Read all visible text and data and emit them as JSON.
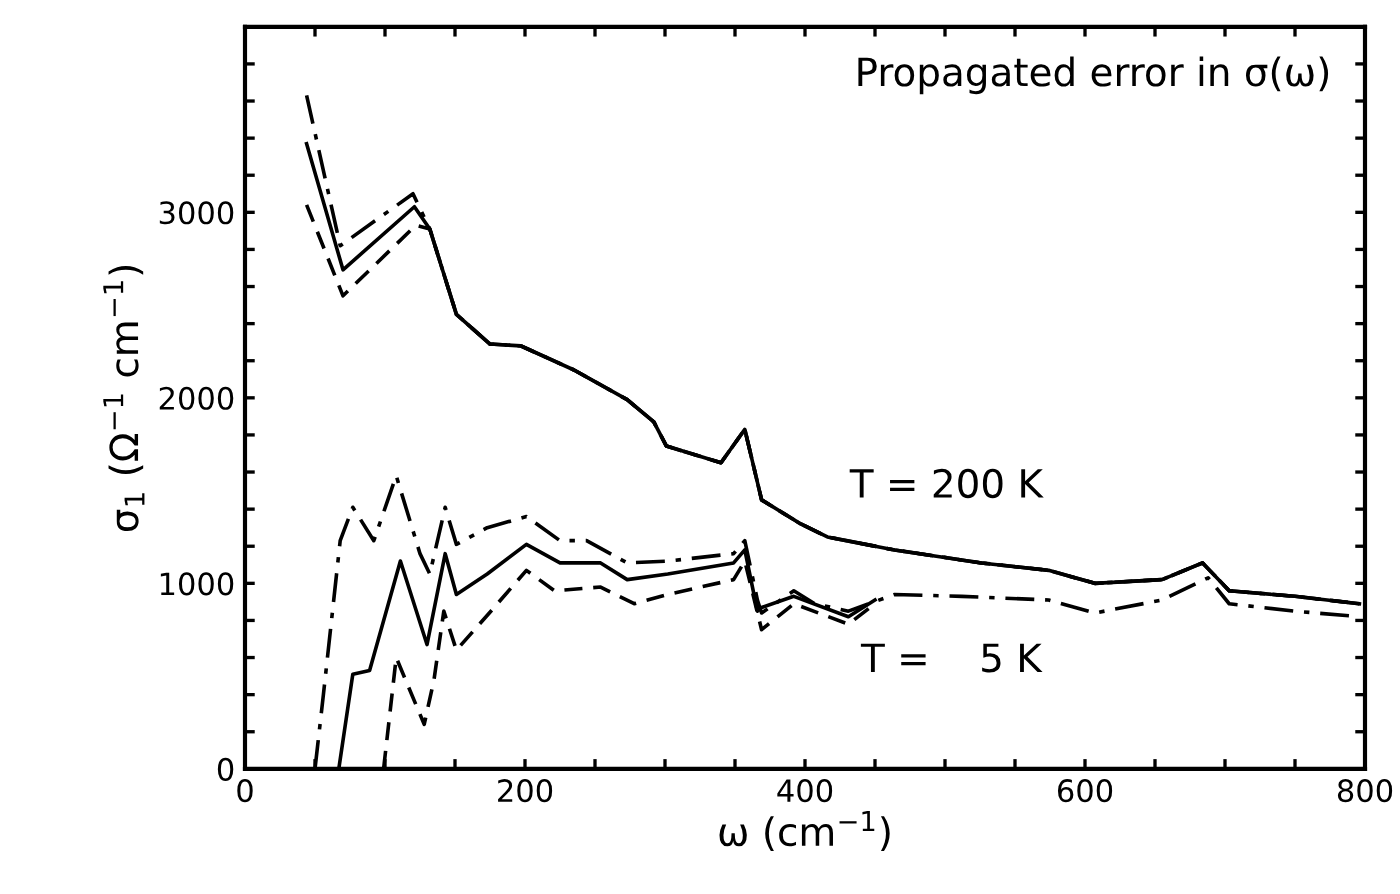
{
  "chart_data": {
    "type": "line",
    "xlabel": "ω (cm$^{−1}$)",
    "ylabel": "σ$_{1}$ (Ω$^{−1}$ cm$^{−1}$)",
    "annotations": [
      "Propagated error in σ(ω)",
      "T = 200 K",
      "T =    5 K"
    ],
    "xlim": [
      0,
      800
    ],
    "ylim": [
      0,
      4000
    ],
    "xticks": [
      0,
      {
        "value": 50,
        "label": null
      },
      {
        "value": 100,
        "label": null
      },
      {
        "value": 150,
        "label": null
      },
      200,
      {
        "value": 250,
        "label": null
      },
      {
        "value": 300,
        "label": null
      },
      {
        "value": 350,
        "label": null
      },
      400,
      {
        "value": 450,
        "label": null
      },
      {
        "value": 500,
        "label": null
      },
      {
        "value": 550,
        "label": null
      },
      600,
      {
        "value": 650,
        "label": null
      },
      {
        "value": 700,
        "label": null
      },
      {
        "value": 750,
        "label": null
      },
      800
    ],
    "yticks": [
      0,
      {
        "value": 200,
        "label": null
      },
      {
        "value": 400,
        "label": null
      },
      {
        "value": 600,
        "label": null
      },
      {
        "value": 800,
        "label": null
      },
      1000,
      {
        "value": 1200,
        "label": null
      },
      {
        "value": 1400,
        "label": null
      },
      {
        "value": 1600,
        "label": null
      },
      {
        "value": 1800,
        "label": null
      },
      2000,
      {
        "value": 2200,
        "label": null
      },
      {
        "value": 2400,
        "label": null
      },
      {
        "value": 2600,
        "label": null
      },
      {
        "value": 2800,
        "label": null
      },
      3000,
      {
        "value": 3200,
        "label": null
      },
      {
        "value": 3400,
        "label": null
      },
      {
        "value": 3600,
        "label": null
      },
      {
        "value": 3800,
        "label": null
      }
    ],
    "grid": false,
    "legend": false,
    "marker": "none",
    "series": [
      {
        "color": "#000000",
        "line_style": "dashdot",
        "x": [
          44,
          68,
          120,
          132,
          151,
          175,
          197,
          235,
          273,
          292,
          301,
          340,
          357,
          369,
          397,
          416,
          464,
          526,
          574,
          607,
          655,
          684,
          703,
          750,
          796
        ],
        "values": [
          3630,
          2820,
          3100,
          2910,
          2450,
          2290,
          2280,
          2150,
          1990,
          1870,
          1740,
          1650,
          1830,
          1450,
          1320,
          1250,
          1180,
          1110,
          1070,
          1000,
          1020,
          1110,
          960,
          930,
          890
        ]
      },
      {
        "color": "#000000",
        "line_style": "solid",
        "x": [
          44,
          70,
          121,
          132,
          151,
          175,
          197,
          235,
          273,
          292,
          301,
          340,
          357,
          369,
          397,
          416,
          464,
          526,
          574,
          607,
          655,
          684,
          703,
          750,
          796
        ],
        "values": [
          3370,
          2690,
          3030,
          2910,
          2450,
          2290,
          2280,
          2150,
          1990,
          1870,
          1740,
          1650,
          1830,
          1450,
          1320,
          1250,
          1180,
          1110,
          1070,
          1000,
          1020,
          1110,
          960,
          930,
          890
        ]
      },
      {
        "color": "#000000",
        "line_style": "dashed",
        "x": [
          44,
          70,
          122,
          132,
          151,
          175,
          197,
          235,
          273,
          292,
          301,
          340,
          357,
          369,
          397,
          416,
          464,
          526,
          574,
          607,
          655,
          684,
          703,
          750,
          796
        ],
        "values": [
          3040,
          2550,
          2930,
          2910,
          2450,
          2290,
          2280,
          2150,
          1990,
          1870,
          1740,
          1650,
          1830,
          1450,
          1320,
          1250,
          1180,
          1110,
          1070,
          1000,
          1020,
          1110,
          960,
          930,
          890
        ]
      },
      {
        "color": "#000000",
        "line_style": "dashdot",
        "x": [
          50,
          56,
          68,
          77,
          92,
          108,
          125,
          132,
          143,
          151,
          173,
          201,
          225,
          244,
          273,
          302,
          349,
          357,
          366,
          369,
          392,
          407,
          431,
          464,
          512,
          574,
          607,
          655,
          688,
          703,
          750,
          796
        ],
        "values": [
          0,
          400,
          1230,
          1410,
          1230,
          1580,
          1160,
          1050,
          1410,
          1210,
          1300,
          1360,
          1230,
          1230,
          1110,
          1120,
          1160,
          1230,
          910,
          840,
          960,
          890,
          850,
          940,
          930,
          910,
          840,
          910,
          1030,
          890,
          850,
          820
        ]
      },
      {
        "color": "#000000",
        "line_style": "solid",
        "x": [
          67,
          77,
          89,
          111,
          130,
          143,
          151,
          173,
          201,
          225,
          254,
          273,
          302,
          349,
          357,
          366,
          369,
          392,
          431,
          450
        ],
        "values": [
          0,
          510,
          530,
          1120,
          670,
          1160,
          940,
          1050,
          1210,
          1110,
          1110,
          1020,
          1050,
          1110,
          1180,
          850,
          870,
          930,
          820,
          910
        ]
      },
      {
        "color": "#000000",
        "line_style": "dashed",
        "x": [
          99,
          108,
          128,
          135,
          142,
          151,
          178,
          201,
          221,
          254,
          278,
          302,
          349,
          357,
          369,
          392,
          431,
          450
        ],
        "values": [
          0,
          600,
          240,
          480,
          850,
          640,
          870,
          1070,
          960,
          980,
          890,
          940,
          1020,
          1120,
          750,
          890,
          780,
          890
        ]
      }
    ]
  }
}
